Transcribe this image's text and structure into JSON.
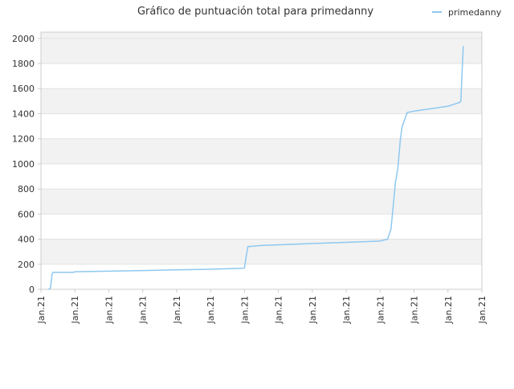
{
  "chart_data": {
    "type": "line",
    "title": "Gráfico de puntuación total para primedanny",
    "xlabel": "",
    "ylabel": "",
    "ylim": [
      0,
      2050
    ],
    "yticks": [
      0,
      200,
      400,
      600,
      800,
      1000,
      1200,
      1400,
      1600,
      1800,
      2000
    ],
    "xlim": [
      0,
      13
    ],
    "xtick_labels": [
      "Jan.21",
      "Jan.21",
      "Jan.21",
      "Jan.21",
      "Jan.21",
      "Jan.21",
      "Jan.21",
      "Jan.21",
      "Jan.21",
      "Jan.21",
      "Jan.21",
      "Jan.21",
      "Jan.21",
      "Jan.21"
    ],
    "grid": true,
    "legend_position": "top-right",
    "colors": {
      "line": "#8ec8f0",
      "band": "#f2f2f2",
      "grid": "#e2e2e2",
      "axis": "#cccccc",
      "text": "#333333"
    },
    "series": [
      {
        "name": "primedanny",
        "x": [
          0.0,
          0.22,
          0.28,
          0.33,
          0.35,
          0.95,
          1.0,
          2.0,
          3.0,
          4.0,
          5.0,
          5.95,
          6.0,
          6.05,
          6.1,
          6.3,
          6.5,
          7.0,
          8.0,
          8.5,
          9.0,
          9.5,
          10.0,
          10.15,
          10.22,
          10.32,
          10.38,
          10.45,
          10.52,
          10.6,
          10.65,
          10.8,
          11.0,
          11.5,
          12.0,
          12.35,
          12.38,
          12.45
        ],
        "y": [
          null,
          0,
          10,
          120,
          135,
          135,
          140,
          145,
          150,
          155,
          160,
          168,
          170,
          260,
          340,
          345,
          350,
          355,
          365,
          370,
          375,
          380,
          385,
          395,
          400,
          480,
          650,
          850,
          960,
          1200,
          1300,
          1410,
          1420,
          1440,
          1460,
          1490,
          1500,
          1940
        ]
      }
    ]
  }
}
